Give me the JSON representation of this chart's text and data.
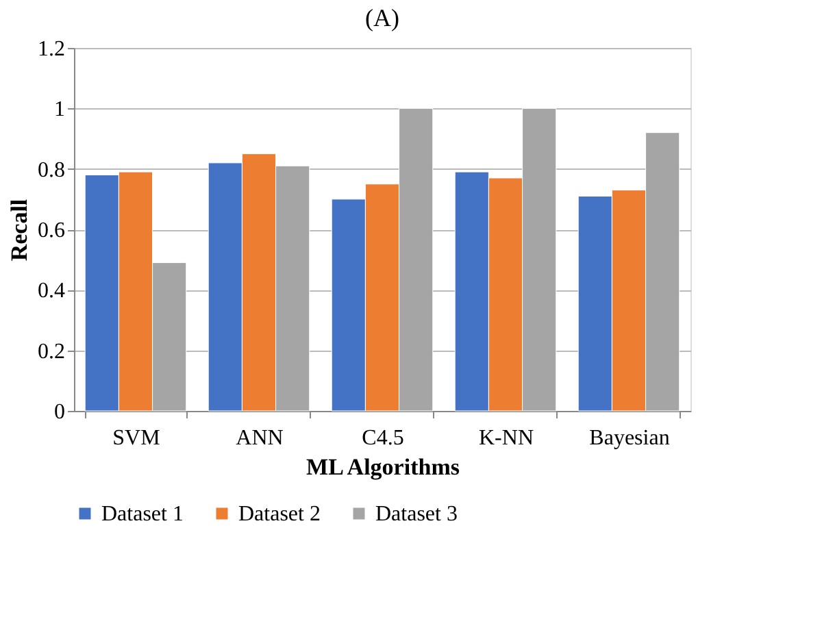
{
  "chart_data": {
    "type": "bar",
    "title": "(A)",
    "xlabel": "ML Algorithms",
    "ylabel": "Recall",
    "categories": [
      "SVM",
      "ANN",
      "C4.5",
      "K-NN",
      "Bayesian"
    ],
    "series": [
      {
        "name": "Dataset 1",
        "color": "#4472c4",
        "values": [
          0.78,
          0.82,
          0.7,
          0.79,
          0.71
        ]
      },
      {
        "name": "Dataset 2",
        "color": "#ed7d31",
        "values": [
          0.79,
          0.85,
          0.75,
          0.77,
          0.73
        ]
      },
      {
        "name": "Dataset 3",
        "color": "#a5a5a5",
        "values": [
          0.49,
          0.81,
          1.0,
          1.0,
          0.92
        ]
      }
    ],
    "ylim": [
      0,
      1.2
    ],
    "yticks": [
      0,
      0.2,
      0.4,
      0.6,
      0.8,
      1,
      1.2
    ],
    "grid": "y",
    "legend": "bottom"
  }
}
